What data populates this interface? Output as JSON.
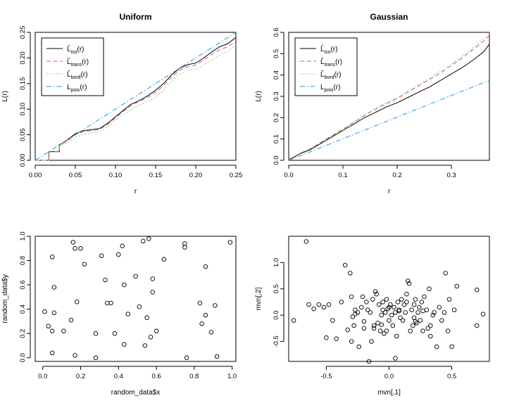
{
  "chart_data": [
    {
      "type": "line",
      "title": "Uniform",
      "xlabel": "r",
      "ylabel": "L(r)",
      "xlim": [
        0,
        0.25
      ],
      "ylim": [
        0,
        0.25
      ],
      "x_ticks": [
        "0.00",
        "0.05",
        "0.10",
        "0.15",
        "0.20",
        "0.25"
      ],
      "y_ticks": [
        "0.00",
        "0.05",
        "0.10",
        "0.15",
        "0.20",
        "0.25"
      ],
      "legend_position": "top-left",
      "series": [
        {
          "name": "L̂iso(r)",
          "base": "L̂",
          "sub": "iso",
          "suffix": "(r)",
          "color": "#000000",
          "dash": "",
          "x": [
            0,
            0.017,
            0.017,
            0.03,
            0.03,
            0.04,
            0.05,
            0.06,
            0.08,
            0.09,
            0.1,
            0.11,
            0.12,
            0.13,
            0.14,
            0.15,
            0.16,
            0.17,
            0.18,
            0.19,
            0.2,
            0.21,
            0.22,
            0.23,
            0.24,
            0.25
          ],
          "y": [
            0,
            0,
            0.017,
            0.017,
            0.03,
            0.04,
            0.052,
            0.058,
            0.062,
            0.072,
            0.085,
            0.098,
            0.11,
            0.117,
            0.126,
            0.137,
            0.15,
            0.167,
            0.18,
            0.187,
            0.19,
            0.2,
            0.212,
            0.222,
            0.228,
            0.24
          ]
        },
        {
          "name": "L̂trans(r)",
          "base": "L̂",
          "sub": "trans",
          "suffix": "(r)",
          "color": "#df536b",
          "dash": "6,4",
          "x": [
            0,
            0.017,
            0.017,
            0.03,
            0.03,
            0.04,
            0.05,
            0.06,
            0.08,
            0.09,
            0.1,
            0.11,
            0.12,
            0.13,
            0.14,
            0.15,
            0.16,
            0.17,
            0.18,
            0.19,
            0.2,
            0.21,
            0.22,
            0.23,
            0.24,
            0.25
          ],
          "y": [
            0,
            0,
            0.017,
            0.017,
            0.029,
            0.038,
            0.05,
            0.056,
            0.06,
            0.07,
            0.083,
            0.096,
            0.108,
            0.115,
            0.123,
            0.133,
            0.146,
            0.163,
            0.176,
            0.183,
            0.186,
            0.196,
            0.207,
            0.216,
            0.222,
            0.233
          ]
        },
        {
          "name": "L̂bord(r)",
          "base": "L̂",
          "sub": "bord",
          "suffix": "(r)",
          "color": "#61d04f",
          "dash": "1.5,3",
          "x": [
            0,
            0.017,
            0.017,
            0.03,
            0.03,
            0.04,
            0.05,
            0.06,
            0.08,
            0.09,
            0.1,
            0.11,
            0.12,
            0.13,
            0.14,
            0.15,
            0.16,
            0.17,
            0.18,
            0.19,
            0.2,
            0.21,
            0.22,
            0.23,
            0.24,
            0.25
          ],
          "y": [
            0,
            0,
            0.016,
            0.016,
            0.027,
            0.035,
            0.045,
            0.05,
            0.056,
            0.065,
            0.078,
            0.09,
            0.1,
            0.108,
            0.115,
            0.122,
            0.138,
            0.155,
            0.168,
            0.175,
            0.178,
            0.186,
            0.196,
            0.206,
            0.213,
            0.225
          ]
        },
        {
          "name": "Lpois(r)",
          "base": "L",
          "sub": "pois",
          "suffix": "(r)",
          "color": "#2297e6",
          "dash": "7,3,1.5,3",
          "x": [
            0,
            0.25
          ],
          "y": [
            0,
            0.25
          ]
        }
      ]
    },
    {
      "type": "line",
      "title": "Gaussian",
      "xlabel": "r",
      "ylabel": "L(r)",
      "xlim": [
        0,
        0.37
      ],
      "ylim": [
        0,
        0.6
      ],
      "x_ticks": [
        "0.0",
        "0.1",
        "0.2",
        "0.3"
      ],
      "y_ticks": [
        "0.0",
        "0.1",
        "0.2",
        "0.3",
        "0.4",
        "0.5",
        "0.6"
      ],
      "legend_position": "top-left",
      "series": [
        {
          "name": "L̂iso(r)",
          "base": "L̂",
          "sub": "iso",
          "suffix": "(r)",
          "color": "#000000",
          "dash": "",
          "x": [
            0,
            0.01,
            0.02,
            0.04,
            0.06,
            0.08,
            0.1,
            0.12,
            0.14,
            0.16,
            0.18,
            0.2,
            0.22,
            0.24,
            0.26,
            0.28,
            0.3,
            0.32,
            0.34,
            0.36,
            0.37
          ],
          "y": [
            0.005,
            0.015,
            0.03,
            0.05,
            0.08,
            0.11,
            0.14,
            0.17,
            0.2,
            0.225,
            0.25,
            0.27,
            0.295,
            0.32,
            0.345,
            0.375,
            0.405,
            0.435,
            0.47,
            0.51,
            0.545
          ]
        },
        {
          "name": "L̂trans(r)",
          "base": "L̂",
          "sub": "trans",
          "suffix": "(r)",
          "color": "#df536b",
          "dash": "6,4",
          "x": [
            0,
            0.01,
            0.02,
            0.04,
            0.06,
            0.08,
            0.1,
            0.12,
            0.14,
            0.16,
            0.18,
            0.2,
            0.22,
            0.24,
            0.26,
            0.28,
            0.3,
            0.32,
            0.34,
            0.36,
            0.37
          ],
          "y": [
            0.006,
            0.017,
            0.032,
            0.054,
            0.085,
            0.115,
            0.145,
            0.178,
            0.21,
            0.24,
            0.265,
            0.29,
            0.32,
            0.35,
            0.38,
            0.41,
            0.445,
            0.48,
            0.52,
            0.56,
            0.585
          ]
        },
        {
          "name": "L̂bord(r)",
          "base": "L̂",
          "sub": "bord",
          "suffix": "(r)",
          "color": "#61d04f",
          "dash": "1.5,3",
          "x": [
            0,
            0.01,
            0.02,
            0.04,
            0.06,
            0.08,
            0.1,
            0.12,
            0.14,
            0.16,
            0.18,
            0.2,
            0.22,
            0.24,
            0.26,
            0.28,
            0.3,
            0.32,
            0.34,
            0.36,
            0.37
          ],
          "y": [
            0.006,
            0.018,
            0.033,
            0.055,
            0.087,
            0.118,
            0.148,
            0.18,
            0.213,
            0.243,
            0.27,
            0.296,
            0.326,
            0.356,
            0.386,
            0.418,
            0.452,
            0.488,
            0.528,
            0.57,
            0.598
          ]
        },
        {
          "name": "Lpois(r)",
          "base": "L",
          "sub": "pois",
          "suffix": "(r)",
          "color": "#2297e6",
          "dash": "7,3,1.5,3",
          "x": [
            0,
            0.37
          ],
          "y": [
            0,
            0.375
          ]
        }
      ]
    },
    {
      "type": "scatter",
      "title": "",
      "xlabel": "random_data$x",
      "ylabel": "random_data$y",
      "xlim": [
        -0.04,
        1.02
      ],
      "ylim": [
        -0.03,
        1.0
      ],
      "x_ticks": [
        "0.0",
        "0.2",
        "0.4",
        "0.6",
        "0.8",
        "1.0"
      ],
      "y_ticks": [
        "0.0",
        "0.2",
        "0.4",
        "0.6",
        "0.8",
        "1.0"
      ],
      "x": [
        0.01,
        0.03,
        0.05,
        0.05,
        0.06,
        0.05,
        0.06,
        0.11,
        0.15,
        0.16,
        0.17,
        0.17,
        0.18,
        0.2,
        0.22,
        0.28,
        0.28,
        0.31,
        0.33,
        0.34,
        0.36,
        0.38,
        0.4,
        0.42,
        0.43,
        0.43,
        0.45,
        0.49,
        0.51,
        0.53,
        0.54,
        0.55,
        0.56,
        0.57,
        0.58,
        0.58,
        0.6,
        0.64,
        0.75,
        0.75,
        0.76,
        0.83,
        0.84,
        0.86,
        0.86,
        0.89,
        0.91,
        0.92,
        0.99
      ],
      "y": [
        0.38,
        0.26,
        0.22,
        0.83,
        0.58,
        0.04,
        0.37,
        0.22,
        0.31,
        0.95,
        0.9,
        0.02,
        0.46,
        0.9,
        0.77,
        0.2,
        0.0,
        0.84,
        0.64,
        0.45,
        0.45,
        0.2,
        0.85,
        0.92,
        0.11,
        0.6,
        0.36,
        0.67,
        0.42,
        0.96,
        0.1,
        0.33,
        0.98,
        0.17,
        0.65,
        0.54,
        0.22,
        0.81,
        0.94,
        0.91,
        0.0,
        0.45,
        0.28,
        0.75,
        0.35,
        0.21,
        0.43,
        0.01,
        0.95
      ]
    },
    {
      "type": "scatter",
      "title": "",
      "xlabel": "mvn[,1]",
      "ylabel": "mvn[,2]",
      "xlim": [
        -0.8,
        0.8
      ],
      "ylim": [
        -0.88,
        1.5
      ],
      "x_ticks": [
        "-0.5",
        "0.0",
        "0.5"
      ],
      "y_ticks": [
        "-0.5",
        "0.0",
        "0.5",
        "1.0"
      ],
      "x": [
        -0.76,
        -0.66,
        -0.64,
        -0.6,
        -0.56,
        -0.52,
        -0.5,
        -0.48,
        -0.45,
        -0.42,
        -0.38,
        -0.35,
        -0.33,
        -0.31,
        -0.3,
        -0.29,
        -0.28,
        -0.27,
        -0.25,
        -0.24,
        -0.22,
        -0.21,
        -0.2,
        -0.18,
        -0.17,
        -0.16,
        -0.15,
        -0.14,
        -0.13,
        -0.12,
        -0.11,
        -0.1,
        -0.09,
        -0.08,
        -0.07,
        -0.06,
        -0.05,
        -0.05,
        -0.04,
        -0.03,
        -0.02,
        -0.01,
        0.0,
        0.01,
        0.02,
        0.03,
        0.04,
        0.05,
        0.06,
        0.07,
        0.08,
        0.09,
        0.1,
        0.11,
        0.12,
        0.13,
        0.14,
        0.15,
        0.16,
        0.17,
        0.18,
        0.19,
        0.2,
        0.21,
        0.22,
        0.23,
        0.24,
        0.25,
        0.26,
        0.27,
        0.28,
        0.3,
        0.31,
        0.32,
        0.33,
        0.35,
        0.36,
        0.38,
        0.4,
        0.42,
        0.44,
        0.45,
        0.47,
        0.48,
        0.5,
        0.52,
        0.54,
        0.7,
        0.7,
        0.75,
        -0.3,
        -0.27,
        -0.2,
        -0.12,
        -0.06,
        0.0,
        0.05,
        0.14,
        0.21,
        0.27,
        0.33,
        -0.02,
        0.08,
        0.2
      ],
      "y": [
        -0.1,
        1.4,
        0.2,
        0.12,
        0.2,
        0.15,
        -0.43,
        0.2,
        -0.1,
        -0.45,
        0.25,
        0.95,
        -0.28,
        0.8,
        0.35,
        -0.03,
        -0.2,
        0.1,
        0.05,
        -0.6,
        0.15,
        0.35,
        -0.25,
        0.25,
        0.1,
        -0.88,
        0.05,
        -0.5,
        0.3,
        -0.2,
        0.45,
        0.4,
        -0.15,
        0.2,
        -0.3,
        0.0,
        0.1,
        0.25,
        -0.35,
        0.05,
        0.3,
        0.12,
        -0.1,
        0.2,
        0.0,
        -0.2,
        0.15,
        0.05,
        -0.4,
        0.25,
        0.1,
        -0.05,
        0.3,
        -0.1,
        0.2,
        0.05,
        0.4,
        0.65,
        0.6,
        -0.3,
        0.1,
        -0.2,
        0.2,
        0.3,
        -0.15,
        0.05,
        0.15,
        -0.1,
        0.25,
        -0.3,
        0.35,
        0.1,
        -0.25,
        0.5,
        -0.2,
        0.0,
        0.05,
        -0.6,
        0.15,
        -0.1,
        0.05,
        0.8,
        -0.3,
        0.3,
        -0.6,
        0.1,
        0.55,
        0.48,
        -0.2,
        0.02,
        -0.5,
        0.02,
        -0.12,
        -0.25,
        -0.18,
        0.15,
        -0.82,
        0.25,
        -0.12,
        0.08,
        -0.4,
        -0.3,
        0.08,
        -0.05
      ]
    }
  ]
}
